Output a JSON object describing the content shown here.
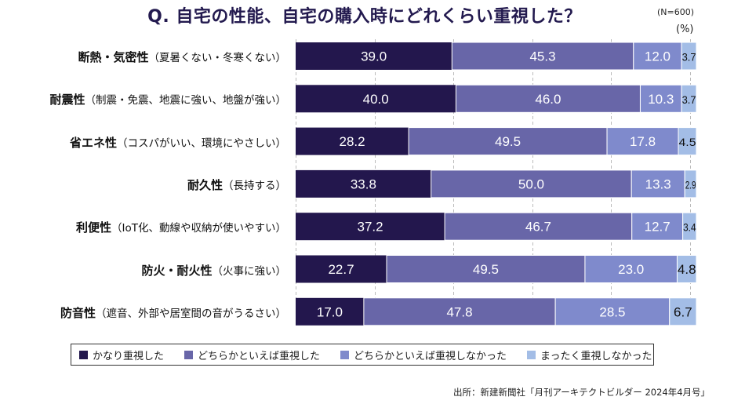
{
  "title": "Q. 自宅の性能、自宅の購入時にどれくらい重視した？",
  "sample_note": "(N=600)",
  "unit_label": "(%)",
  "source": "出所：新建新聞社「月刊アーキテクトビルダー 2024年4月号」",
  "colors": {
    "very_important": "#23174d",
    "somewhat_important": "#6866a8",
    "somewhat_not_important": "#7f8acc",
    "not_at_all": "#a3bde6",
    "grid": "#bbbbbb"
  },
  "chart_data": {
    "type": "bar",
    "orientation": "horizontal",
    "stacked": true,
    "title": "Q. 自宅の性能、自宅の購入時にどれくらい重視した？",
    "xlabel": "",
    "ylabel": "",
    "unit": "%",
    "xlim": [
      0,
      100
    ],
    "grid": true,
    "gridlines_x": [
      0,
      20,
      40,
      60,
      80,
      100
    ],
    "legend_position": "bottom",
    "categories": [
      {
        "main": "断熱・気密性",
        "sub": "（夏暑くない・冬寒くない）"
      },
      {
        "main": "耐震性",
        "sub": "（制震・免震、地震に強い、地盤が強い）"
      },
      {
        "main": "省エネ性",
        "sub": "（コスパがいい、環境にやさしい）"
      },
      {
        "main": "耐久性",
        "sub": "（長持する）"
      },
      {
        "main": "利便性",
        "sub": "（IoT化、動線や収納が使いやすい）"
      },
      {
        "main": "防火・耐火性",
        "sub": "（火事に強い）"
      },
      {
        "main": "防音性",
        "sub": "（遮音、外部や居室間の音がうるさい）"
      }
    ],
    "series": [
      {
        "name": "かなり重視した",
        "color_key": "very_important",
        "label_color": "#ffffff",
        "values": [
          39.0,
          40.0,
          28.2,
          33.8,
          37.2,
          22.7,
          17.0
        ]
      },
      {
        "name": "どちらかといえば重視した",
        "color_key": "somewhat_important",
        "label_color": "#ffffff",
        "values": [
          45.3,
          46.0,
          49.5,
          50.0,
          46.7,
          49.5,
          47.8
        ]
      },
      {
        "name": "どちらかといえば重視しなかった",
        "color_key": "somewhat_not_important",
        "label_color": "#ffffff",
        "values": [
          12.0,
          10.3,
          17.8,
          13.3,
          12.7,
          23.0,
          28.5
        ]
      },
      {
        "name": "まったく重視しなかった",
        "color_key": "not_at_all",
        "label_color": "#111111",
        "values": [
          3.7,
          3.7,
          4.5,
          2.9,
          3.4,
          4.8,
          6.7
        ]
      }
    ]
  }
}
